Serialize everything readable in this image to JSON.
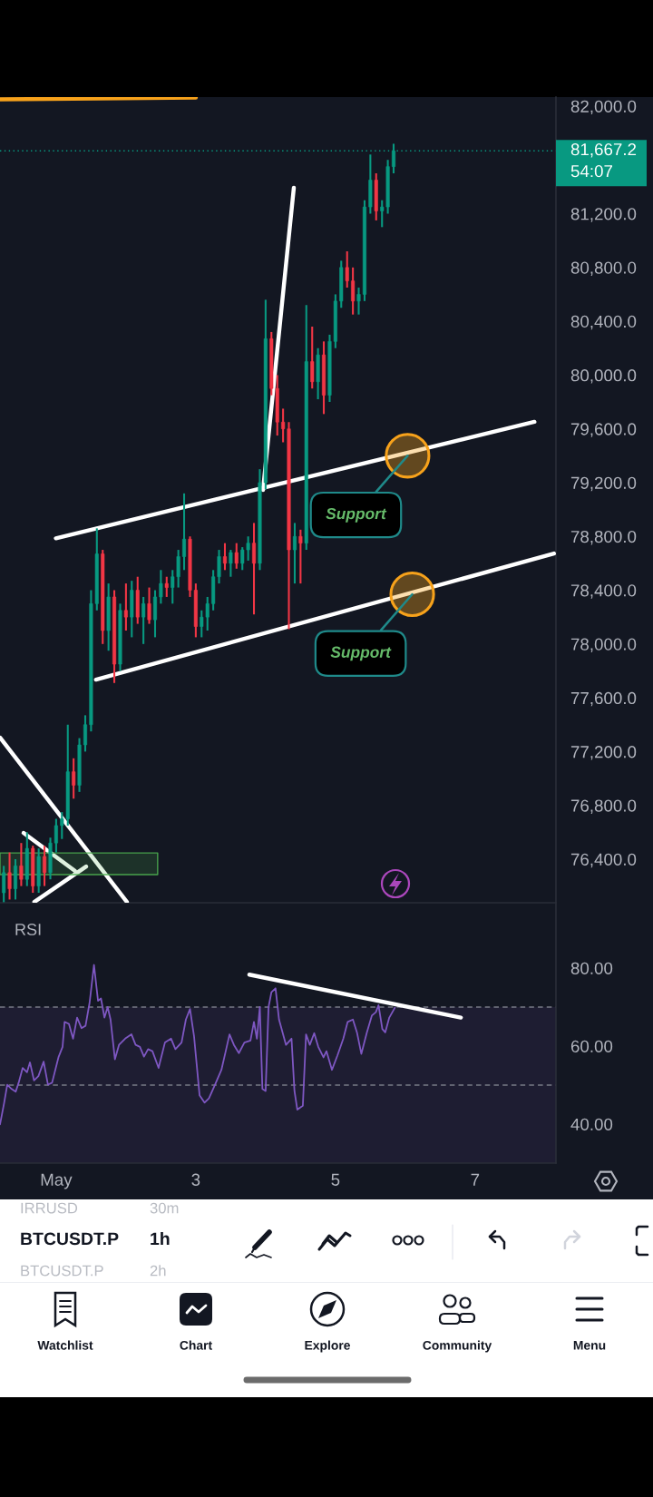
{
  "chart_data": [
    {
      "type": "candlestick",
      "x": [
        0.25,
        0.333,
        0.417,
        0.5,
        0.583,
        0.667,
        0.75,
        0.833,
        0.917,
        1,
        1.083,
        1.167,
        1.25,
        1.333,
        1.417,
        1.5,
        1.583,
        1.667,
        1.75,
        1.833,
        1.917,
        2,
        2.083,
        2.167,
        2.25,
        2.333,
        2.417,
        2.5,
        2.583,
        2.667,
        2.75,
        2.833,
        2.917,
        3,
        3.083,
        3.167,
        3.25,
        3.333,
        3.417,
        3.5,
        3.583,
        3.667,
        3.75,
        3.833,
        3.917,
        4,
        4.083,
        4.167,
        4.25,
        4.333,
        4.417,
        4.5,
        4.583,
        4.667,
        4.75,
        4.833,
        4.917,
        5,
        5.083,
        5.167,
        5.25,
        5.333,
        5.417,
        5.5,
        5.583,
        5.667,
        5.75,
        5.833
      ],
      "ohlc": [
        [
          76150,
          76350,
          76080,
          76300
        ],
        [
          76300,
          76450,
          76100,
          76180
        ],
        [
          76180,
          76400,
          76100,
          76350
        ],
        [
          76350,
          76520,
          76200,
          76250
        ],
        [
          76250,
          76600,
          76200,
          76480
        ],
        [
          76480,
          76500,
          76150,
          76200
        ],
        [
          76200,
          76480,
          76150,
          76420
        ],
        [
          76420,
          76500,
          76200,
          76300
        ],
        [
          76300,
          76560,
          76250,
          76520
        ],
        [
          76520,
          76700,
          76450,
          76650
        ],
        [
          76650,
          76750,
          76550,
          76700
        ],
        [
          76700,
          77400,
          76650,
          77050
        ],
        [
          77050,
          77150,
          76850,
          76950
        ],
        [
          76950,
          77300,
          76900,
          77250
        ],
        [
          77250,
          77470,
          77200,
          77400
        ],
        [
          77400,
          78400,
          77350,
          78300
        ],
        [
          78300,
          78860,
          78250,
          78670
        ],
        [
          78670,
          78700,
          78000,
          78100
        ],
        [
          78100,
          78450,
          77950,
          78350
        ],
        [
          78350,
          78400,
          77710,
          77850
        ],
        [
          77850,
          78300,
          77800,
          78250
        ],
        [
          78250,
          78450,
          78100,
          78200
        ],
        [
          78200,
          78470,
          78050,
          78400
        ],
        [
          78400,
          78500,
          78150,
          78200
        ],
        [
          78200,
          78350,
          78000,
          78300
        ],
        [
          78300,
          78420,
          78150,
          78180
        ],
        [
          78180,
          78400,
          78050,
          78350
        ],
        [
          78350,
          78550,
          78300,
          78450
        ],
        [
          78450,
          78500,
          78350,
          78420
        ],
        [
          78420,
          78550,
          78300,
          78500
        ],
        [
          78500,
          78700,
          78420,
          78650
        ],
        [
          78650,
          79120,
          78550,
          78780
        ],
        [
          78780,
          78800,
          78350,
          78400
        ],
        [
          78400,
          78450,
          78050,
          78130
        ],
        [
          78130,
          78250,
          78050,
          78200
        ],
        [
          78200,
          78350,
          78100,
          78300
        ],
        [
          78300,
          78550,
          78250,
          78500
        ],
        [
          78500,
          78700,
          78450,
          78650
        ],
        [
          78650,
          78750,
          78550,
          78600
        ],
        [
          78600,
          78700,
          78500,
          78680
        ],
        [
          78680,
          78750,
          78560,
          78600
        ],
        [
          78600,
          78720,
          78550,
          78700
        ],
        [
          78700,
          78800,
          78620,
          78750
        ],
        [
          78750,
          78900,
          78220,
          78600
        ],
        [
          78600,
          79300,
          78550,
          79200
        ],
        [
          79200,
          80560,
          79150,
          80270
        ],
        [
          80270,
          80320,
          79850,
          79900
        ],
        [
          79900,
          80000,
          79550,
          79650
        ],
        [
          79650,
          79750,
          79500,
          79600
        ],
        [
          79600,
          79650,
          78110,
          78700
        ],
        [
          78700,
          78900,
          78450,
          78800
        ],
        [
          78800,
          78850,
          78450,
          78750
        ],
        [
          78750,
          80520,
          78700,
          80100
        ],
        [
          80100,
          80360,
          79900,
          79950
        ],
        [
          79950,
          80200,
          79820,
          80150
        ],
        [
          80150,
          80250,
          79710,
          79850
        ],
        [
          79850,
          80300,
          79800,
          80250
        ],
        [
          80250,
          80600,
          80200,
          80550
        ],
        [
          80550,
          80850,
          80500,
          80800
        ],
        [
          80800,
          80920,
          80650,
          80700
        ],
        [
          80700,
          80800,
          80450,
          80550
        ],
        [
          80550,
          80650,
          80450,
          80600
        ],
        [
          80600,
          81300,
          80550,
          81250
        ],
        [
          81250,
          81640,
          81200,
          81450
        ],
        [
          81450,
          81500,
          81150,
          81220
        ],
        [
          81220,
          81300,
          81100,
          81250
        ],
        [
          81250,
          81600,
          81200,
          81550
        ],
        [
          81550,
          81720,
          81500,
          81667.2
        ]
      ],
      "colors": [
        "#089981",
        "#f23645",
        "#089981",
        "#f23645",
        "#089981",
        "#f23645",
        "#089981",
        "#f23645",
        "#089981",
        "#089981",
        "#089981",
        "#089981",
        "#f23645",
        "#089981",
        "#089981",
        "#089981",
        "#089981",
        "#f23645",
        "#089981",
        "#f23645",
        "#089981",
        "#f23645",
        "#089981",
        "#f23645",
        "#089981",
        "#f23645",
        "#089981",
        "#089981",
        "#f23645",
        "#089981",
        "#089981",
        "#089981",
        "#f23645",
        "#f23645",
        "#089981",
        "#089981",
        "#089981",
        "#089981",
        "#f23645",
        "#089981",
        "#f23645",
        "#089981",
        "#089981",
        "#f23645",
        "#089981",
        "#089981",
        "#f23645",
        "#f23645",
        "#f23645",
        "#f23645",
        "#089981",
        "#f23645",
        "#089981",
        "#f23645",
        "#089981",
        "#f23645",
        "#089981",
        "#089981",
        "#089981",
        "#f23645",
        "#f23645",
        "#089981",
        "#089981",
        "#089981",
        "#f23645",
        "#089981",
        "#089981",
        "#089981"
      ],
      "series": [
        {
          "type": "line",
          "x": [
            0.996,
            7.85
          ],
          "values": [
            78786,
            79652
          ],
          "color": "#ffffff"
        },
        {
          "type": "line",
          "x": [
            1.571,
            8.129
          ],
          "values": [
            77735,
            78673
          ],
          "color": "#ffffff"
        },
        {
          "type": "line",
          "x": [
            3.963,
            4.404
          ],
          "values": [
            79146,
            81393
          ],
          "color": "#ffffff"
        },
        {
          "type": "line",
          "x": [
            0.196,
            2.013
          ],
          "values": [
            77304,
            76082
          ],
          "color": "#ffffff"
        },
        {
          "type": "line",
          "x": [
            0.533,
            1.271
          ],
          "values": [
            76595,
            76312
          ],
          "color": "#ffffff"
        },
        {
          "type": "line",
          "x": [
            1.429,
            0.688
          ],
          "values": [
            76345,
            76082
          ],
          "color": "#ffffff"
        },
        {
          "type": "line",
          "x": [
            0.196,
            3.0
          ],
          "values": [
            82050,
            82064
          ],
          "color": "#f7a21b"
        },
        {
          "type": "line",
          "x": [
            0.196,
            2.454
          ],
          "values": [
            null,
            null
          ],
          "lower": [
            76285,
            76285
          ],
          "upper": [
            76446,
            76446
          ],
          "color": "#4caf50"
        },
        {
          "type": "scatter",
          "x": [
            6.033,
            6.1
          ],
          "values": [
            79400,
            78370
          ],
          "color": "#f7a21b",
          "marker": "circle"
        }
      ],
      "xlim": [
        0.196,
        8.158
      ],
      "ylim": [
        76076,
        82067
      ],
      "xticks": [
        1,
        3,
        5,
        7
      ],
      "yticks": [
        {
          "value": 76400,
          "label": "76,400.0"
        },
        {
          "value": 76800,
          "label": "76,800.0"
        },
        {
          "value": 77200,
          "label": "77,200.0"
        },
        {
          "value": 77600,
          "label": "77,600.0"
        },
        {
          "value": 78000,
          "label": "78,000.0"
        },
        {
          "value": 78400,
          "label": "78,400.0"
        },
        {
          "value": 78800,
          "label": "78,800.0"
        },
        {
          "value": 79200,
          "label": "79,200.0"
        },
        {
          "value": 79600,
          "label": "79,600.0"
        },
        {
          "value": 80000,
          "label": "80,000.0"
        },
        {
          "value": 80400,
          "label": "80,400.0"
        },
        {
          "value": 80800,
          "label": "80,800.0"
        },
        {
          "value": 81200,
          "label": "81,200.0"
        },
        {
          "value": 82000,
          "label": "82,000.0"
        }
      ],
      "tick_labels": "y",
      "ref_lines": [
        {
          "axis": "y",
          "value": 81667.2,
          "label": "81,667.2",
          "color": "#089981",
          "line_style": "dotted"
        }
      ],
      "annotations": [
        "54:07",
        {
          "text": "Support",
          "x": 6.033,
          "y": 79400
        },
        {
          "text": "Support",
          "x": 6.1,
          "y": 78370
        }
      ]
    },
    {
      "type": "line",
      "title": "RSI",
      "series": [
        {
          "x": [
            0.196,
            0.254,
            0.3,
            0.363,
            0.421,
            0.463,
            0.521,
            0.583,
            0.625,
            0.683,
            0.746,
            0.821,
            0.883,
            0.942,
            1.033,
            1.092,
            1.121,
            1.183,
            1.242,
            1.3,
            1.363,
            1.421,
            1.479,
            1.542,
            1.6,
            1.642,
            1.692,
            1.738,
            1.779,
            1.842,
            1.9,
            1.988,
            2.079,
            2.138,
            2.2,
            2.258,
            2.317,
            2.379,
            2.467,
            2.558,
            2.646,
            2.708,
            2.796,
            2.858,
            2.917,
            2.975,
            3.054,
            3.125,
            3.188,
            3.275,
            3.367,
            3.425,
            3.483,
            3.546,
            3.617,
            3.696,
            3.783,
            3.833,
            3.875,
            3.917,
            3.954,
            4.0,
            4.042,
            4.083,
            4.142,
            4.192,
            4.292,
            4.371,
            4.413,
            4.454,
            4.533,
            4.579,
            4.633,
            4.696,
            4.754,
            4.829,
            4.871,
            4.95,
            5.029,
            5.113,
            5.175,
            5.25,
            5.308,
            5.371,
            5.45,
            5.521,
            5.579,
            5.617,
            5.671,
            5.713,
            5.771,
            5.85
          ],
          "values": [
            39.9,
            45.3,
            50.1,
            49.0,
            48.3,
            50.6,
            54.4,
            53.3,
            55.8,
            51.2,
            52.3,
            56.0,
            50.1,
            50.6,
            57.1,
            59.8,
            66.2,
            65.7,
            61.9,
            67.3,
            64.6,
            65.2,
            71.1,
            80.8,
            71.6,
            72.2,
            67.3,
            70.0,
            66.8,
            56.6,
            60.3,
            61.9,
            63.0,
            60.3,
            59.8,
            57.3,
            59.2,
            58.7,
            54.4,
            60.9,
            61.9,
            59.2,
            60.9,
            66.8,
            69.5,
            62.5,
            47.4,
            45.5,
            46.6,
            50.1,
            53.9,
            58.4,
            63.0,
            60.3,
            58.2,
            60.9,
            61.4,
            66.2,
            61.9,
            70.0,
            49.0,
            48.5,
            70.0,
            73.8,
            74.8,
            66.8,
            60.3,
            61.9,
            48.5,
            43.7,
            44.7,
            63.0,
            60.3,
            63.3,
            59.8,
            57.1,
            58.7,
            53.9,
            57.6,
            61.9,
            66.2,
            66.8,
            63.5,
            58.0,
            63.5,
            67.8,
            68.7,
            70.5,
            64.4,
            63.5,
            67.3,
            69.8
          ],
          "color": "#7e57c2"
        },
        {
          "x": [
            3.767,
            6.796
          ],
          "values": [
            78.3,
            67.3
          ],
          "color": "#ffffff"
        }
      ],
      "xlim": [
        0.196,
        8.158
      ],
      "ylim": [
        30,
        96.5
      ],
      "xticks": [
        {
          "value": 1,
          "label": "May"
        },
        3,
        5,
        7
      ],
      "yticks": [
        {
          "value": 40,
          "label": "40.00"
        },
        {
          "value": 60,
          "label": "60.00"
        },
        {
          "value": 80,
          "label": "80.00"
        }
      ],
      "bands": [
        {
          "axis": "y",
          "from": 30,
          "to": 70,
          "color": "#7e57c2"
        }
      ],
      "ref_lines": [
        {
          "axis": "y",
          "value": 70,
          "color": "#787b86",
          "line_style": "dashed"
        },
        {
          "axis": "y",
          "value": 50,
          "color": "#787b86",
          "line_style": "dashed"
        }
      ]
    },
    {
      "type": "other",
      "annotations": [
        "IRRUSD",
        "30m",
        "BTCUSDT.P",
        "1h",
        "BTCUSDT.P",
        "2h",
        "Watchlist",
        "Chart",
        "Explore",
        "Community",
        "Menu"
      ]
    }
  ]
}
